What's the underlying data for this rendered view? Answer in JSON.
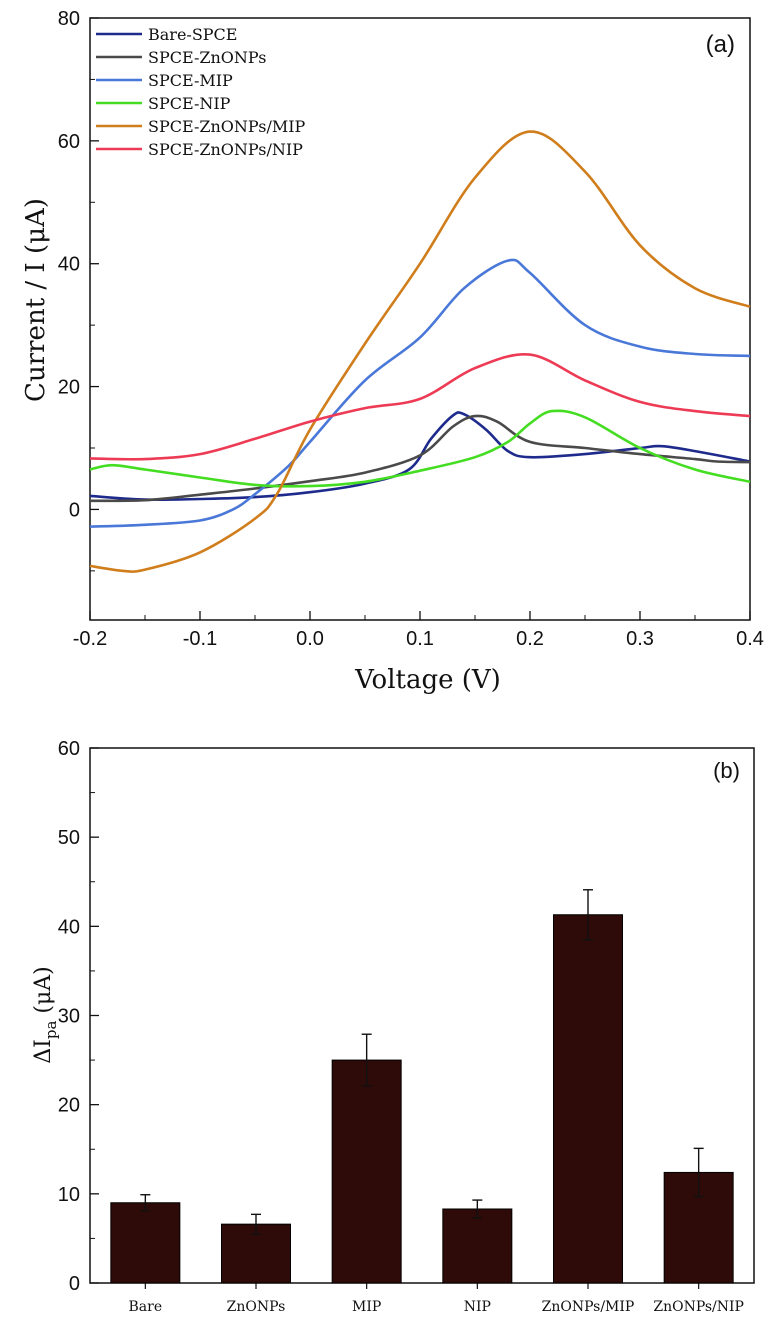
{
  "chart_data": [
    {
      "type": "line",
      "panel_label": "(a)",
      "xlabel": "Voltage (V)",
      "ylabel": "Current / I (μA)",
      "xlim": [
        -0.2,
        0.4
      ],
      "ylim": [
        -18,
        80
      ],
      "xticks": [
        -0.2,
        -0.1,
        0.0,
        0.1,
        0.2,
        0.3,
        0.4
      ],
      "xtick_labels": [
        "-0.2",
        "-0.1",
        "0.0",
        "0.1",
        "0.2",
        "0.3",
        "0.4"
      ],
      "yticks": [
        0,
        20,
        40,
        60,
        80
      ],
      "ytick_labels": [
        "0",
        "20",
        "40",
        "60",
        "80"
      ],
      "legend_position": "top-left",
      "series": [
        {
          "name": "Bare-SPCE",
          "color": "#1e2a8c",
          "x": [
            -0.2,
            -0.15,
            -0.1,
            -0.05,
            0.0,
            0.05,
            0.09,
            0.11,
            0.13,
            0.14,
            0.16,
            0.18,
            0.2,
            0.25,
            0.3,
            0.32,
            0.35,
            0.4
          ],
          "y": [
            2.2,
            1.6,
            1.7,
            2.0,
            2.8,
            4.2,
            6.5,
            11.5,
            15.3,
            15.5,
            13.0,
            9.5,
            8.5,
            9.0,
            10.0,
            10.3,
            9.5,
            7.8
          ]
        },
        {
          "name": "SPCE-ZnONPs",
          "color": "#4a4a4a",
          "x": [
            -0.2,
            -0.15,
            -0.1,
            -0.05,
            0.0,
            0.05,
            0.1,
            0.13,
            0.15,
            0.17,
            0.2,
            0.25,
            0.3,
            0.35,
            0.37,
            0.4
          ],
          "y": [
            1.4,
            1.5,
            2.4,
            3.4,
            4.6,
            6.0,
            8.8,
            13.5,
            15.2,
            14.3,
            11.0,
            10.0,
            9.0,
            8.2,
            7.8,
            7.7
          ]
        },
        {
          "name": "SPCE-MIP",
          "color": "#4a78d8",
          "x": [
            -0.2,
            -0.15,
            -0.1,
            -0.07,
            -0.05,
            -0.02,
            0.0,
            0.05,
            0.1,
            0.14,
            0.18,
            0.2,
            0.25,
            0.3,
            0.35,
            0.4
          ],
          "y": [
            -2.8,
            -2.5,
            -1.8,
            0.0,
            2.5,
            7.0,
            11.0,
            21.0,
            28.0,
            36.0,
            40.5,
            38.5,
            30.0,
            26.5,
            25.3,
            25.0
          ]
        },
        {
          "name": "SPCE-NIP",
          "color": "#44dd22",
          "x": [
            -0.2,
            -0.18,
            -0.15,
            -0.1,
            -0.05,
            0.0,
            0.05,
            0.1,
            0.15,
            0.18,
            0.2,
            0.22,
            0.25,
            0.3,
            0.35,
            0.4
          ],
          "y": [
            6.5,
            7.2,
            6.5,
            5.2,
            4.0,
            3.8,
            4.5,
            6.3,
            8.5,
            11.0,
            14.0,
            16.0,
            15.0,
            10.0,
            6.5,
            4.5
          ]
        },
        {
          "name": "SPCE-ZnONPs/MIP",
          "color": "#d07d1c",
          "x": [
            -0.2,
            -0.17,
            -0.15,
            -0.1,
            -0.05,
            -0.03,
            0.0,
            0.05,
            0.1,
            0.15,
            0.2,
            0.25,
            0.3,
            0.35,
            0.4
          ],
          "y": [
            -9.2,
            -10.0,
            -9.8,
            -7.0,
            -1.5,
            2.5,
            13.0,
            27.0,
            40.0,
            54.0,
            61.5,
            55.0,
            43.0,
            36.0,
            33.0
          ]
        },
        {
          "name": "SPCE-ZnONPs/NIP",
          "color": "#ee3b55",
          "x": [
            -0.2,
            -0.15,
            -0.1,
            -0.05,
            0.0,
            0.05,
            0.1,
            0.15,
            0.2,
            0.25,
            0.3,
            0.35,
            0.4
          ],
          "y": [
            8.3,
            8.2,
            9.0,
            11.5,
            14.3,
            16.5,
            18.0,
            23.0,
            25.2,
            21.0,
            17.5,
            16.0,
            15.2
          ]
        }
      ]
    },
    {
      "type": "bar",
      "panel_label": "(b)",
      "ylabel_main": "ΔI",
      "ylabel_sub": "pa",
      "ylabel_unit": " (μA)",
      "ylim": [
        0,
        60
      ],
      "yticks": [
        0,
        10,
        20,
        30,
        40,
        50,
        60
      ],
      "ytick_labels": [
        "0",
        "10",
        "20",
        "30",
        "40",
        "50",
        "60"
      ],
      "categories": [
        "Bare",
        "ZnONPs",
        "MIP",
        "NIP",
        "ZnONPs/MIP",
        "ZnONPs/NIP"
      ],
      "values": [
        9.0,
        6.6,
        25.0,
        8.3,
        41.3,
        12.4
      ],
      "errors": [
        0.9,
        1.1,
        2.9,
        1.0,
        2.8,
        2.7
      ],
      "bar_color": "#2e0b08"
    }
  ]
}
